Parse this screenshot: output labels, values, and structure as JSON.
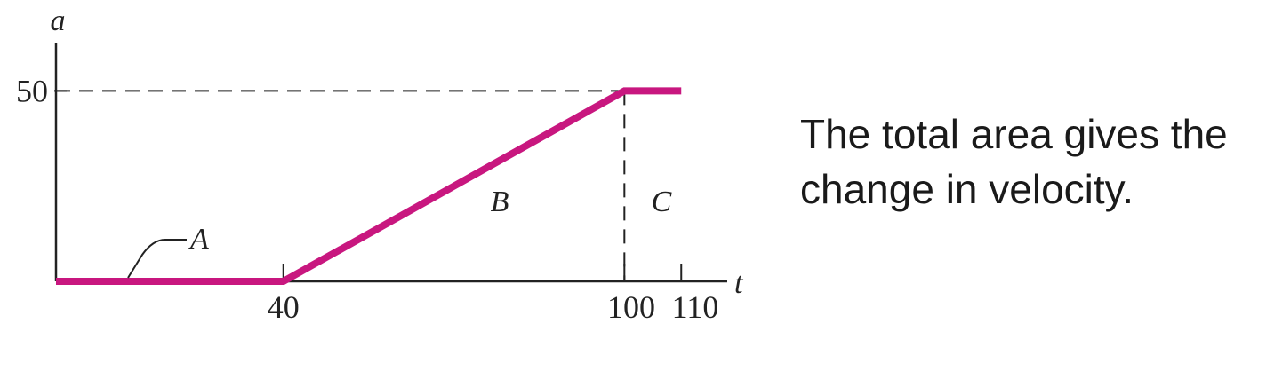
{
  "chart_data": {
    "type": "line",
    "xlabel": "t",
    "ylabel": "a",
    "x_ticks": [
      40,
      100,
      110
    ],
    "y_ticks": [
      50
    ],
    "xlim": [
      0,
      117
    ],
    "ylim": [
      0,
      65
    ],
    "series": [
      {
        "x": [
          0,
          40,
          100,
          110
        ],
        "y": [
          0,
          0,
          50,
          50
        ],
        "color": "#c8177f"
      }
    ],
    "reference_lines": {
      "horizontal_at_y": 50,
      "vertical_at_x": 100,
      "style": "dashed"
    },
    "region_labels": [
      "A",
      "B",
      "C"
    ],
    "annotation_lines": [
      "The total area gives the",
      "change in velocity."
    ]
  }
}
